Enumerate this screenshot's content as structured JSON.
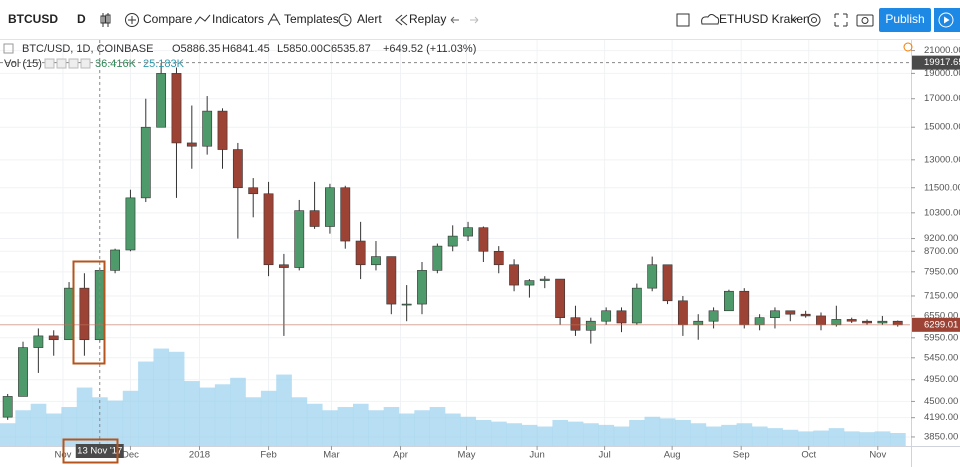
{
  "toolbar": {
    "symbol": "BTCUSD",
    "interval": "D",
    "compare": "Compare",
    "indicators": "Indicators",
    "templates": "Templates",
    "alert": "Alert",
    "replay": "Replay",
    "watch_symbol": "ETHUSD Kraken",
    "publish": "Publish"
  },
  "legend": {
    "title": "BTC/USD, 1D, COINBASE",
    "open": "O5886.35",
    "high": "H6841.45",
    "low": "L5850.00",
    "close": "C6535.87",
    "change": "+649.52 (+11.03%)",
    "volume_title": "Vol (15)",
    "volume_value": "36.416K",
    "volume_ma": "25.183K"
  },
  "crosshair": {
    "time_label": "13 Nov '17"
  },
  "chart_data": {
    "type": "candlestick",
    "log_scale": true,
    "up_color": "#4e9a6a",
    "down_color": "#9c4336",
    "volume_color": "#9fd3ee",
    "open": [
      4200,
      4600,
      5700,
      6000,
      5900,
      7400,
      5900,
      8000,
      8750,
      11000,
      15000,
      19000,
      14000,
      13800,
      16100,
      13600,
      11500,
      11200,
      8200,
      8100,
      10400,
      9700,
      11500,
      9100,
      8200,
      8500,
      6900,
      6900,
      8000,
      8900,
      9300,
      9650,
      8700,
      8200,
      7500,
      7650,
      7700,
      6500,
      6150,
      6400,
      6700,
      6350,
      7400,
      8200,
      7000,
      6300,
      6400,
      6700,
      7300,
      6300,
      6500,
      6700,
      6600,
      6550,
      6300,
      6450,
      6400,
      6350,
      6400
    ],
    "high": [
      4650,
      5850,
      6200,
      6150,
      7600,
      7900,
      8100,
      8800,
      11400,
      17000,
      19900,
      19500,
      16500,
      17200,
      16300,
      14000,
      12000,
      11800,
      8600,
      10900,
      11800,
      11700,
      11600,
      9900,
      9100,
      8500,
      7500,
      8300,
      9000,
      9750,
      9900,
      9700,
      8900,
      8400,
      7700,
      7800,
      7700,
      6850,
      6500,
      6800,
      6800,
      7550,
      8500,
      8200,
      7150,
      6600,
      6800,
      7350,
      7400,
      6600,
      6800,
      6700,
      6700,
      6650,
      6850,
      6500,
      6450,
      6550,
      6420
    ],
    "low": [
      4150,
      4600,
      5100,
      5500,
      5900,
      5500,
      5850,
      7900,
      8700,
      10800,
      15000,
      11000,
      12500,
      13300,
      12500,
      9200,
      10100,
      7800,
      6000,
      8000,
      9600,
      9400,
      8800,
      7700,
      8000,
      6600,
      6400,
      6600,
      7900,
      8700,
      9100,
      8300,
      7900,
      7300,
      7100,
      7400,
      6300,
      6000,
      5800,
      6300,
      6100,
      6300,
      7300,
      6900,
      6000,
      5900,
      6200,
      6700,
      6200,
      6150,
      6200,
      6400,
      6500,
      6150,
      6250,
      6350,
      6300,
      6300,
      6250
    ],
    "close": [
      4600,
      5700,
      6000,
      5900,
      7400,
      5900,
      8000,
      8750,
      11000,
      15000,
      19000,
      14000,
      13800,
      16100,
      13600,
      11500,
      11200,
      8200,
      8100,
      10400,
      9700,
      11500,
      9100,
      8200,
      8500,
      6900,
      6900,
      8000,
      8900,
      9300,
      9650,
      8700,
      8200,
      7500,
      7650,
      7700,
      6500,
      6150,
      6400,
      6700,
      6350,
      7400,
      8200,
      7000,
      6300,
      6400,
      6700,
      7300,
      6300,
      6500,
      6700,
      6600,
      6550,
      6300,
      6450,
      6400,
      6350,
      6400,
      6299.01
    ],
    "volume": [
      14000,
      22000,
      26000,
      20000,
      24000,
      36000,
      30000,
      28000,
      34000,
      52000,
      60000,
      58000,
      40000,
      36000,
      38000,
      42000,
      30000,
      34000,
      44000,
      30000,
      26000,
      22000,
      24000,
      26000,
      22000,
      24000,
      20000,
      22000,
      24000,
      20000,
      18000,
      16000,
      15000,
      14000,
      13000,
      12000,
      16000,
      15000,
      14000,
      13000,
      12000,
      16000,
      18000,
      17000,
      16000,
      14000,
      12000,
      13000,
      14000,
      12000,
      11000,
      10000,
      9000,
      9500,
      11000,
      9000,
      8500,
      9000,
      8000
    ],
    "volume_axis": "y2",
    "xlim": [
      0,
      59.3
    ],
    "ylim": [
      3700,
      22000
    ],
    "y2lim": [
      0,
      250000
    ],
    "xticks": [
      {
        "value": 4.1,
        "label": "Nov"
      },
      {
        "value": 8.5,
        "label": "Dec"
      },
      {
        "value": 13,
        "label": "2018"
      },
      {
        "value": 17.5,
        "label": "Feb"
      },
      {
        "value": 21.6,
        "label": "Mar"
      },
      {
        "value": 26.1,
        "label": "Apr"
      },
      {
        "value": 30.4,
        "label": "May"
      },
      {
        "value": 35,
        "label": "Jun"
      },
      {
        "value": 39.4,
        "label": "Jul"
      },
      {
        "value": 43.8,
        "label": "Aug"
      },
      {
        "value": 48.3,
        "label": "Sep"
      },
      {
        "value": 52.7,
        "label": "Oct"
      },
      {
        "value": 57.2,
        "label": "Nov"
      }
    ],
    "yticks": [
      {
        "value": 21000,
        "label": "21000.00"
      },
      {
        "value": 19000,
        "label": "19000.00"
      },
      {
        "value": 17000,
        "label": "17000.00"
      },
      {
        "value": 15000,
        "label": "15000.00"
      },
      {
        "value": 13000,
        "label": "13000.00"
      },
      {
        "value": 11500,
        "label": "11500.00"
      },
      {
        "value": 10300,
        "label": "10300.00"
      },
      {
        "value": 9200,
        "label": "9200.00"
      },
      {
        "value": 8700,
        "label": "8700.00"
      },
      {
        "value": 7950,
        "label": "7950.00"
      },
      {
        "value": 7150,
        "label": "7150.00"
      },
      {
        "value": 6550,
        "label": "6550.00"
      },
      {
        "value": 5950,
        "label": "5950.00"
      },
      {
        "value": 5450,
        "label": "5450.00"
      },
      {
        "value": 4950,
        "label": "4950.00"
      },
      {
        "value": 4500,
        "label": "4500.00"
      },
      {
        "value": 4190,
        "label": "4190.00"
      },
      {
        "value": 3850,
        "label": "3850.00"
      }
    ],
    "crosshair_price": 19917.65,
    "crosshair_x": 6
  }
}
